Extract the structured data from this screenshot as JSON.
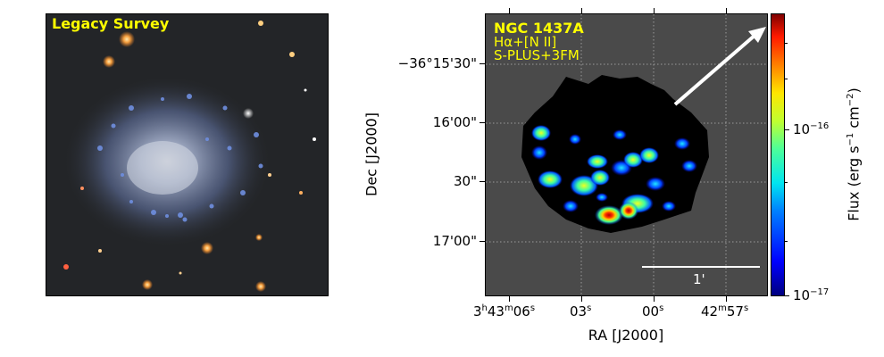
{
  "left_panel": {
    "label": "Legacy Survey",
    "label_color": "#ffff00"
  },
  "right_panel": {
    "object_name": "NGC 1437A",
    "filter_line": "Hα+[N II]",
    "survey": "S-PLUS+3FM",
    "scale_bar_label": "1'",
    "background_color": "#4a4a4a"
  },
  "axes": {
    "ylabel": "Dec [J2000]",
    "xlabel": "RA [J2000]",
    "y_ticks": [
      "−36°15'30\"",
      "16'00\"",
      "30\"",
      "17'00\""
    ],
    "x_ticks": [
      {
        "main": "3",
        "sup1": "h",
        "mid": "43",
        "sup2": "m",
        "tail": "06",
        "sup3": "s"
      },
      {
        "main": "03",
        "sup1": "s"
      },
      {
        "main": "00",
        "sup1": "s"
      },
      {
        "main": "42",
        "sup1": "m",
        "mid": "57",
        "sup2": "s"
      }
    ]
  },
  "colorbar": {
    "label_prefix": "Flux (erg s",
    "label_exp1": "−1",
    "label_mid": " cm",
    "label_exp2": "−2",
    "label_suffix": ")",
    "tick_high_base": "10",
    "tick_high_exp": "−16",
    "tick_low_base": "10",
    "tick_low_exp": "−17"
  }
}
